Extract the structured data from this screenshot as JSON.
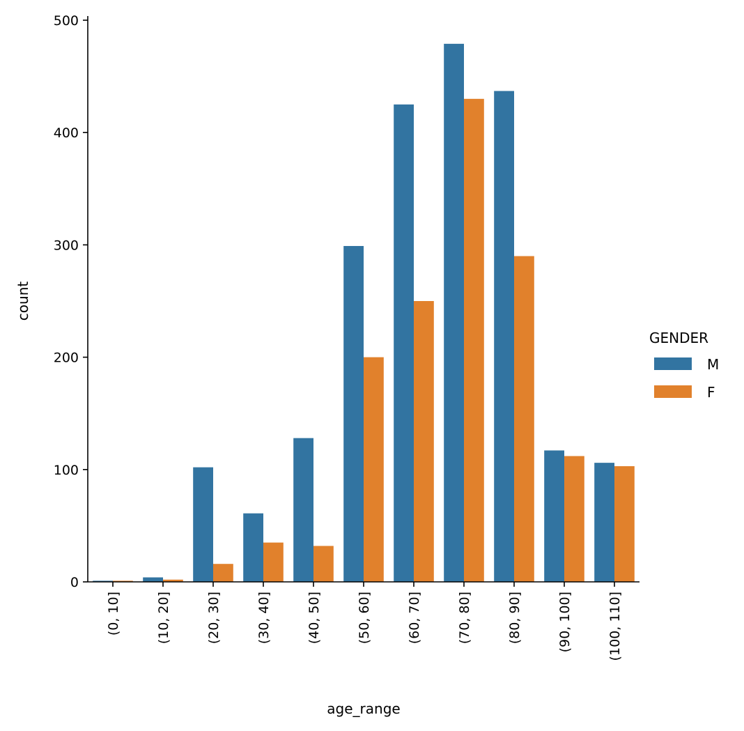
{
  "chart_data": {
    "type": "bar",
    "title": "",
    "xlabel": "age_range",
    "ylabel": "count",
    "ylim": [
      0,
      500
    ],
    "yticks": [
      0,
      100,
      200,
      300,
      400,
      500
    ],
    "grid": false,
    "legend": {
      "title": "GENDER",
      "placement": "center-right"
    },
    "categories": [
      "(0, 10]",
      "(10, 20]",
      "(20, 30]",
      "(30, 40]",
      "(40, 50]",
      "(50, 60]",
      "(60, 70]",
      "(70, 80]",
      "(80, 90]",
      "(90, 100]",
      "(100, 110]"
    ],
    "series": [
      {
        "name": "M",
        "color": "#3274a1",
        "values": [
          1,
          4,
          102,
          61,
          128,
          299,
          425,
          479,
          437,
          117,
          106
        ]
      },
      {
        "name": "F",
        "color": "#e1812c",
        "values": [
          1,
          2,
          16,
          35,
          32,
          200,
          250,
          430,
          290,
          112,
          103
        ]
      }
    ]
  }
}
